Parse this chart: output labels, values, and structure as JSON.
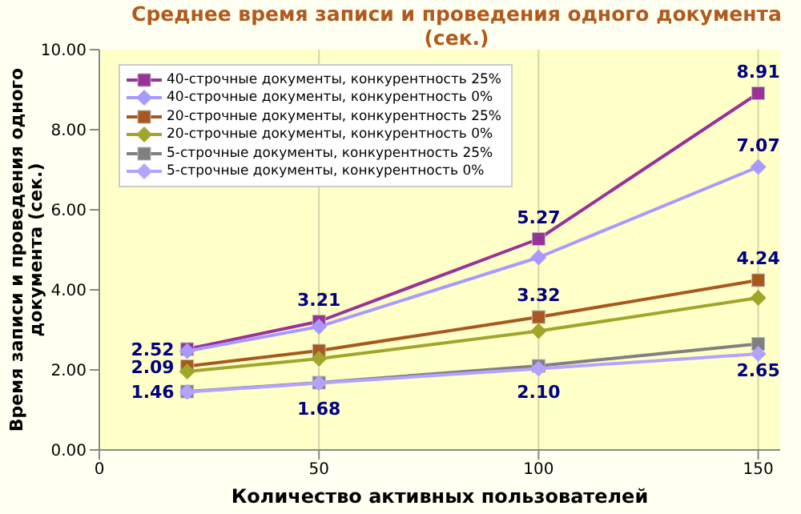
{
  "chart_data": {
    "type": "line",
    "title": "Среднее время записи и проведения одного документа (сек.)",
    "xlabel": "Количество активных пользователей",
    "ylabel": "Время записи и проведения одного документа (сек.)",
    "x": [
      20,
      50,
      100,
      150
    ],
    "xlim": [
      0,
      155
    ],
    "xticks": [
      0,
      50,
      100,
      150
    ],
    "ylim": [
      0,
      10
    ],
    "yticks": [
      {
        "value": 0,
        "label": "0.00"
      },
      {
        "value": 2,
        "label": "2.00"
      },
      {
        "value": 4,
        "label": "4.00"
      },
      {
        "value": 6,
        "label": "6.00"
      },
      {
        "value": 8,
        "label": "8.00"
      },
      {
        "value": 10,
        "label": "10.00"
      }
    ],
    "grid": "x",
    "legend": "top left",
    "series": [
      {
        "name": "40-строчные документы, конкурентность 25%",
        "color": "#993399",
        "marker": "square",
        "values": [
          2.52,
          3.21,
          5.27,
          8.91
        ],
        "value_labels": [
          "2.52",
          "3.21",
          "5.27",
          "8.91"
        ]
      },
      {
        "name": "40-строчные документы, конкурентность 0%",
        "color": "#a999ff",
        "marker": "diamond",
        "values": [
          2.47,
          3.08,
          4.81,
          7.07
        ],
        "value_labels": [
          null,
          null,
          null,
          "7.07"
        ]
      },
      {
        "name": "20-строчные документы, конкурентность 25%",
        "color": "#a8581e",
        "marker": "square",
        "values": [
          2.09,
          2.48,
          3.32,
          4.24
        ],
        "value_labels": [
          "2.09",
          null,
          "3.32",
          "4.24"
        ]
      },
      {
        "name": "20-строчные документы, конкурентность 0%",
        "color": "#a0a62a",
        "marker": "diamond",
        "values": [
          1.96,
          2.28,
          2.97,
          3.8
        ]
      },
      {
        "name": "5-строчные документы, конкурентность 25%",
        "color": "#808080",
        "marker": "square",
        "values": [
          1.46,
          1.68,
          2.1,
          2.65
        ],
        "value_labels": [
          "1.46",
          "1.68",
          "2.10",
          "2.65"
        ]
      },
      {
        "name": "5-строчные документы, конкурентность 0%",
        "color": "#b3a3ff",
        "marker": "diamond",
        "values": [
          1.45,
          1.67,
          2.03,
          2.4
        ]
      }
    ]
  }
}
